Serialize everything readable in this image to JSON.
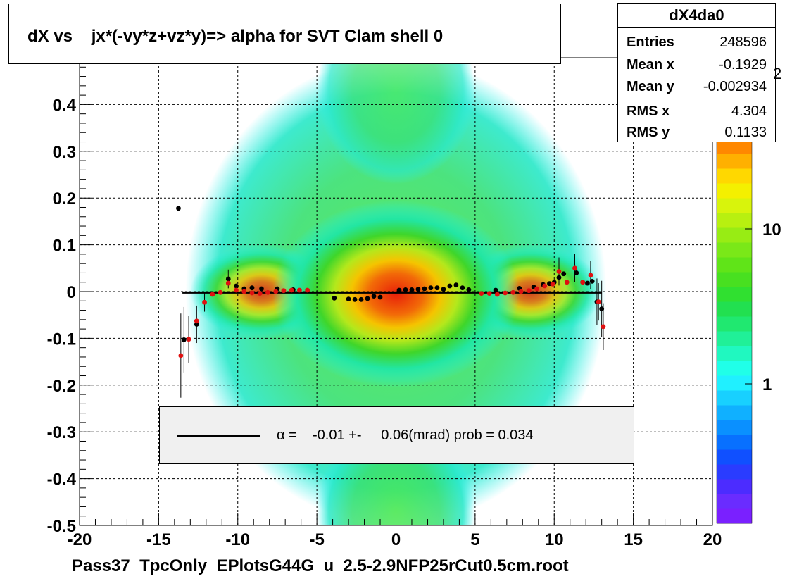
{
  "chart_data": {
    "type": "heatmap",
    "title": "dX vs    jx*(-vy*z+vz*y)=> alpha for SVT Clam shell 0",
    "xlabel": "Pass37_TpcOnly_EPlotsG44G_u_2.5-2.9NFP25rCut0.5cm.root",
    "ylabel": "",
    "xlim": [
      -20,
      20
    ],
    "ylim": [
      -0.5,
      0.5
    ],
    "x_ticks": [
      "-20",
      "-15",
      "-10",
      "-5",
      "0",
      "5",
      "10",
      "15",
      "20"
    ],
    "y_ticks": [
      "-0.5",
      "-0.4",
      "-0.3",
      "-0.2",
      "-0.1",
      "0",
      "0.1",
      "0.2",
      "0.3",
      "0.4"
    ],
    "grid": true,
    "log_z": true,
    "z_ticks": [
      "1",
      "10"
    ],
    "z_exponent_label": "2",
    "stats": {
      "name": "dX4da0",
      "rows": [
        {
          "label": "Entries",
          "value": "248596"
        },
        {
          "label": "Mean x",
          "value": "-0.1929"
        },
        {
          "label": "Mean y",
          "value": "-0.002934"
        },
        {
          "label": "RMS x",
          "value": "4.304"
        },
        {
          "label": "RMS y",
          "value": "0.1133"
        }
      ]
    },
    "fit": {
      "legend_text": "α =    -0.01 +-     0.06(mrad) prob = 0.034",
      "x_range": [
        -13.5,
        13.0
      ],
      "y": -0.002
    },
    "profile_black": [
      {
        "x": -13.75,
        "y": 0.178
      },
      {
        "x": -13.4,
        "y": -0.103,
        "err": 0.07
      },
      {
        "x": -12.6,
        "y": -0.07,
        "err": 0.04
      },
      {
        "x": -10.6,
        "y": 0.027,
        "err": 0.02
      },
      {
        "x": -10.1,
        "y": 0.012
      },
      {
        "x": -9.6,
        "y": 0.006
      },
      {
        "x": -9.1,
        "y": 0.008
      },
      {
        "x": -8.5,
        "y": 0.006
      },
      {
        "x": -7.5,
        "y": 0.006
      },
      {
        "x": -6.5,
        "y": 0.004
      },
      {
        "x": -3.9,
        "y": -0.014
      },
      {
        "x": -3.0,
        "y": -0.016
      },
      {
        "x": -2.6,
        "y": -0.017
      },
      {
        "x": -2.2,
        "y": -0.017
      },
      {
        "x": -1.8,
        "y": -0.015
      },
      {
        "x": -1.4,
        "y": -0.01
      },
      {
        "x": -1.0,
        "y": -0.012
      },
      {
        "x": 0.2,
        "y": 0.003
      },
      {
        "x": 0.6,
        "y": 0.004
      },
      {
        "x": 1.0,
        "y": 0.004
      },
      {
        "x": 1.4,
        "y": 0.005
      },
      {
        "x": 1.8,
        "y": 0.006
      },
      {
        "x": 2.2,
        "y": 0.008
      },
      {
        "x": 2.6,
        "y": 0.008
      },
      {
        "x": 3.0,
        "y": 0.005
      },
      {
        "x": 3.4,
        "y": 0.012
      },
      {
        "x": 3.8,
        "y": 0.014
      },
      {
        "x": 4.2,
        "y": 0.008
      },
      {
        "x": 4.6,
        "y": 0.004
      },
      {
        "x": 6.3,
        "y": 0.003
      },
      {
        "x": 7.8,
        "y": 0.007
      },
      {
        "x": 8.7,
        "y": 0.01
      },
      {
        "x": 9.3,
        "y": 0.015
      },
      {
        "x": 9.7,
        "y": 0.017
      },
      {
        "x": 10.0,
        "y": 0.02
      },
      {
        "x": 10.3,
        "y": 0.03
      },
      {
        "x": 10.6,
        "y": 0.038
      },
      {
        "x": 11.4,
        "y": 0.04
      },
      {
        "x": 11.8,
        "y": 0.02
      },
      {
        "x": 12.1,
        "y": 0.018
      },
      {
        "x": 12.4,
        "y": 0.022
      },
      {
        "x": 12.7,
        "y": -0.022,
        "err": 0.05
      },
      {
        "x": 13.0,
        "y": -0.037,
        "err": 0.06
      }
    ],
    "profile_red": [
      {
        "x": -13.6,
        "y": -0.137,
        "err": 0.09
      },
      {
        "x": -13.1,
        "y": -0.102,
        "err": 0.05
      },
      {
        "x": -12.6,
        "y": -0.063
      },
      {
        "x": -12.1,
        "y": -0.023,
        "err": 0.02
      },
      {
        "x": -11.6,
        "y": -0.006
      },
      {
        "x": -11.1,
        "y": -0.002
      },
      {
        "x": -10.6,
        "y": 0.018
      },
      {
        "x": -10.1,
        "y": 0.003
      },
      {
        "x": -9.6,
        "y": 0.0
      },
      {
        "x": -9.1,
        "y": -0.003
      },
      {
        "x": -8.6,
        "y": -0.004
      },
      {
        "x": -8.1,
        "y": -0.002
      },
      {
        "x": -7.6,
        "y": 0.0
      },
      {
        "x": -7.1,
        "y": 0.002
      },
      {
        "x": -6.6,
        "y": 0.003
      },
      {
        "x": -6.1,
        "y": 0.003
      },
      {
        "x": -5.6,
        "y": 0.003
      },
      {
        "x": 5.4,
        "y": -0.004
      },
      {
        "x": 5.9,
        "y": -0.004
      },
      {
        "x": 6.4,
        "y": -0.006
      },
      {
        "x": 6.9,
        "y": -0.003
      },
      {
        "x": 7.4,
        "y": -0.002
      },
      {
        "x": 7.9,
        "y": 0.0
      },
      {
        "x": 8.4,
        "y": 0.002
      },
      {
        "x": 8.9,
        "y": 0.006
      },
      {
        "x": 9.4,
        "y": 0.012
      },
      {
        "x": 9.9,
        "y": 0.016
      },
      {
        "x": 10.3,
        "y": 0.043,
        "err": 0.03
      },
      {
        "x": 10.8,
        "y": 0.02
      },
      {
        "x": 11.3,
        "y": 0.05,
        "err": 0.03
      },
      {
        "x": 11.8,
        "y": 0.02
      },
      {
        "x": 12.3,
        "y": 0.035,
        "err": 0.03
      },
      {
        "x": 12.8,
        "y": -0.022,
        "err": 0.04
      },
      {
        "x": 13.1,
        "y": -0.075,
        "err": 0.05
      }
    ]
  }
}
